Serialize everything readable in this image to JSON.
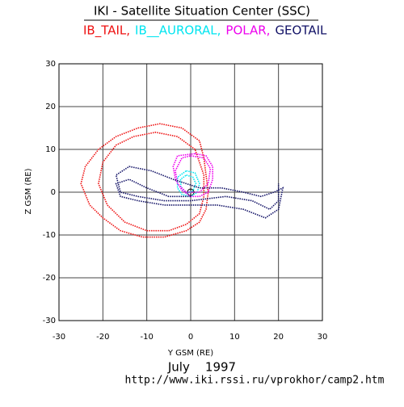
{
  "chart_data": {
    "type": "line",
    "title": "IKI - Satellite Situation Center (SSC)",
    "xlabel": "Y GSM (RE)",
    "ylabel": "Z GSM (RE)",
    "date": "July    1997",
    "url": "http://www.iki.rssi.ru/vprokhor/camp2.htm",
    "xlim": [
      -30,
      30
    ],
    "ylim": [
      -30,
      30
    ],
    "xticks": [
      -30,
      -20,
      -10,
      0,
      10,
      20,
      30
    ],
    "yticks": [
      -30,
      -20,
      -10,
      0,
      10,
      20,
      30
    ],
    "grid": true,
    "series": [
      {
        "name": "IB_TAIL,",
        "color": "#ee1111",
        "x": [
          2,
          -2,
          -7,
          -12,
          -17,
          -21,
          -24,
          -25,
          -23,
          -20,
          -16,
          -11,
          -6,
          -1,
          2,
          3.5,
          4,
          3.5,
          3,
          2,
          null,
          1,
          -3,
          -8,
          -13,
          -17,
          -20,
          -21,
          -19,
          -15,
          -10,
          -5,
          -1,
          2,
          3,
          3,
          1
        ],
        "values": [
          12,
          15,
          16,
          15,
          13,
          10,
          6,
          2,
          -3,
          -6,
          -9,
          -10.5,
          -10.5,
          -9,
          -7,
          -4,
          0,
          4,
          8,
          12,
          null,
          10,
          13,
          14,
          13,
          11,
          7,
          2,
          -3,
          -7,
          -9,
          -9,
          -7.5,
          -5,
          -1,
          4,
          10
        ]
      },
      {
        "name": "IB__AURORAL,",
        "color": "#00e5f0",
        "x": [
          -1,
          1,
          2,
          1.5,
          0,
          -2,
          -3,
          -3,
          -1,
          null,
          -1,
          0.5,
          1.2,
          0.5,
          -1,
          -2.2,
          -2.3,
          -1
        ],
        "values": [
          5,
          4.5,
          2,
          0,
          -1,
          -0.5,
          1,
          3.5,
          5,
          null,
          4,
          3.5,
          2,
          0.3,
          -0.2,
          1,
          3,
          4
        ]
      },
      {
        "name": "POLAR,",
        "color": "#ee00ee",
        "x": [
          1,
          3.5,
          5,
          5,
          4,
          2,
          0,
          -2,
          -3.5,
          -4,
          -3,
          1,
          null,
          0,
          3,
          4.5,
          4,
          2,
          -1,
          -3,
          -3.5,
          -2,
          0
        ],
        "values": [
          9,
          8.5,
          6,
          3,
          0,
          -1,
          -1,
          0.5,
          3,
          6,
          8.5,
          9,
          null,
          8.5,
          8,
          5.5,
          2,
          0,
          0,
          2,
          5,
          8,
          8.5
        ]
      },
      {
        "name": "GEOTAIL",
        "color": "#111166",
        "x": [
          0,
          -5,
          -10,
          -14,
          -17,
          -16,
          -12,
          -6,
          0,
          6,
          12,
          17,
          20,
          21,
          19,
          16,
          12,
          7,
          2,
          -4,
          -9,
          -14,
          -17,
          -16,
          -12,
          -6,
          0,
          8,
          14,
          18,
          20,
          20
        ],
        "values": [
          -1,
          -1,
          1,
          3,
          2,
          -1,
          -2,
          -3,
          -3,
          -3,
          -4,
          -6,
          -4,
          1,
          0,
          -1,
          0,
          1,
          1,
          3,
          5,
          6,
          4,
          0,
          -1,
          -2,
          -2,
          -1,
          -2,
          -4,
          -2,
          2
        ]
      }
    ]
  }
}
